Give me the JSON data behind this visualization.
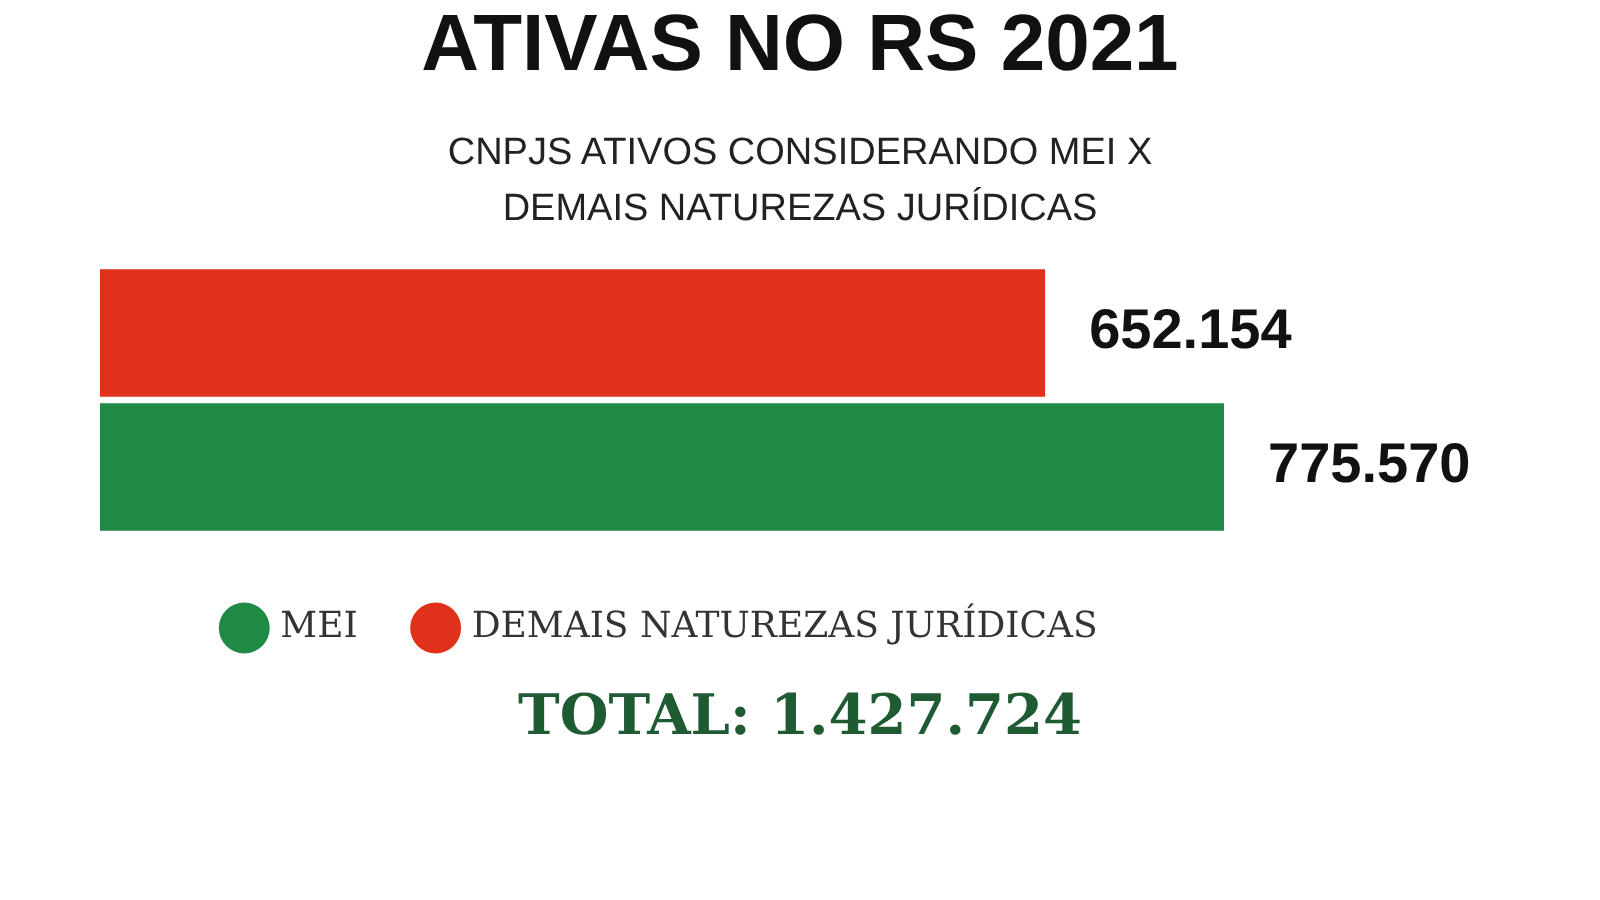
{
  "chart_data": {
    "type": "bar",
    "orientation": "horizontal",
    "title": "ATIVAS NO RS 2021",
    "subtitle": "CNPJS ATIVOS CONSIDERANDO MEI X DEMAIS NATUREZAS JURÍDICAS",
    "categories": [
      null
    ],
    "series": [
      {
        "name": "DEMAIS NATUREZAS JURÍDICAS",
        "color": "#e0321a",
        "values": [
          652154
        ],
        "value_labels": [
          "652.154"
        ]
      },
      {
        "name": "MEI",
        "color": "#1e8a45",
        "values": [
          775570
        ],
        "value_labels": [
          "775.570"
        ]
      }
    ],
    "legend": "bottom",
    "grid": false,
    "tick_labels": false,
    "annotations": [
      "TOTAL: 1.427.724"
    ]
  }
}
